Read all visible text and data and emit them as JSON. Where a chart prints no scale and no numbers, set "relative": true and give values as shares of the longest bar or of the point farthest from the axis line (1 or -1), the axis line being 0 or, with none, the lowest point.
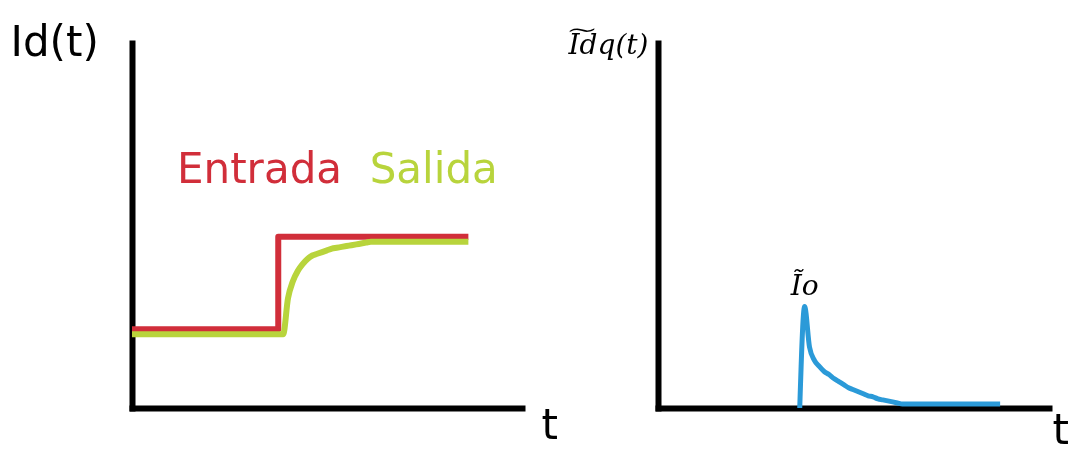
{
  "chart_data": [
    {
      "type": "line",
      "ylabel": "Id(t)",
      "xlabel": "t",
      "relative": true,
      "legend": "top",
      "line_style": "solid",
      "categories": [
        null,
        null,
        null,
        null,
        null,
        null,
        null,
        null,
        null,
        null,
        null,
        null,
        null,
        null,
        null,
        null,
        null,
        null,
        null,
        null,
        null,
        null,
        null,
        null,
        null,
        null,
        null,
        null,
        null,
        null,
        null,
        null,
        null,
        null,
        null,
        null,
        null,
        null,
        null,
        null,
        null,
        null,
        null,
        null,
        null,
        null,
        null,
        null,
        null,
        null,
        null,
        null,
        null,
        null,
        null,
        null,
        null,
        null,
        null,
        null,
        null,
        null,
        null,
        null,
        null,
        null,
        null,
        null,
        null,
        null,
        null,
        null,
        null,
        null,
        null,
        null,
        null,
        null,
        null,
        null,
        null
      ],
      "series": [
        {
          "name": "Entrada",
          "type": "step",
          "color": "#d12e3a",
          "values": [
            0.46,
            0.46,
            0.46,
            0.46,
            0.46,
            0.46,
            0.46,
            0.46,
            0.46,
            0.46,
            0.46,
            0.46,
            0.46,
            0.46,
            0.46,
            0.46,
            0.46,
            0.46,
            0.46,
            0.46,
            0.46,
            0.46,
            0.46,
            0.46,
            0.46,
            0.46,
            0.46,
            0.46,
            0.46,
            0.46,
            1,
            1,
            1,
            1,
            1,
            1,
            1,
            1,
            1,
            1,
            1,
            1,
            1,
            1,
            1,
            1,
            1,
            1,
            1,
            1,
            1,
            1,
            1,
            1,
            1,
            1,
            1,
            1,
            1,
            1,
            1,
            1,
            1,
            1,
            1,
            1,
            1,
            1,
            1,
            1,
            null,
            null,
            null,
            null,
            null,
            null,
            null,
            null,
            null,
            null,
            null
          ]
        },
        {
          "name": "Salida",
          "type": "line",
          "color": "#b8d43c",
          "values": [
            0.43,
            0.43,
            0.43,
            0.43,
            0.43,
            0.43,
            0.43,
            0.43,
            0.43,
            0.43,
            0.43,
            0.43,
            0.43,
            0.43,
            0.43,
            0.43,
            0.43,
            0.43,
            0.43,
            0.43,
            0.43,
            0.43,
            0.43,
            0.43,
            0.43,
            0.43,
            0.43,
            0.43,
            0.43,
            0.43,
            0.43,
            0.43,
            0.64,
            0.74,
            0.8,
            0.84,
            0.87,
            0.89,
            0.9,
            0.91,
            0.92,
            0.93,
            0.935,
            0.94,
            0.945,
            0.95,
            0.955,
            0.96,
            0.965,
            0.97,
            0.97,
            0.97,
            0.97,
            0.97,
            0.97,
            0.97,
            0.97,
            0.97,
            0.97,
            0.97,
            0.97,
            0.97,
            0.97,
            0.97,
            0.97,
            0.97,
            0.97,
            0.97,
            0.97,
            0.97,
            null,
            null,
            null,
            null,
            null,
            null,
            null,
            null,
            null,
            null,
            null
          ]
        }
      ]
    },
    {
      "type": "line",
      "ylabel": "I͠dq(t)",
      "xlabel": "t",
      "relative": true,
      "line_style": "solid",
      "categories": [
        null,
        null,
        null,
        null,
        null,
        null,
        null,
        null,
        null,
        null,
        null,
        null,
        null,
        null,
        null,
        null,
        null,
        null,
        null,
        null,
        null,
        null,
        null,
        null,
        null,
        null,
        null,
        null,
        null,
        null,
        null,
        null,
        null,
        null,
        null,
        null,
        null,
        null,
        null,
        null,
        null,
        null,
        null,
        null,
        null,
        null,
        null,
        null,
        null,
        null,
        null,
        null,
        null,
        null,
        null,
        null,
        null,
        null,
        null,
        null,
        null,
        null,
        null,
        null,
        null,
        null,
        null,
        null,
        null,
        null,
        null,
        null,
        null,
        null,
        null,
        null,
        null,
        null,
        null,
        null,
        null
      ],
      "series": [
        {
          "type": "line",
          "color": "#2b9ad8",
          "values": [
            null,
            null,
            null,
            null,
            null,
            null,
            null,
            null,
            null,
            null,
            null,
            null,
            null,
            null,
            null,
            null,
            null,
            null,
            null,
            null,
            null,
            null,
            null,
            null,
            null,
            null,
            null,
            null,
            null,
            0,
            1,
            0.6,
            0.47,
            0.41,
            0.36,
            0.33,
            0.29,
            0.26,
            0.23,
            0.2,
            0.18,
            0.16,
            0.14,
            0.12,
            0.11,
            0.09,
            0.08,
            0.07,
            0.06,
            0.05,
            0.04,
            0.04,
            0.04,
            0.04,
            0.04,
            0.04,
            0.04,
            0.04,
            0.04,
            0.04,
            0.04,
            0.04,
            0.04,
            0.04,
            0.04,
            0.04,
            0.04,
            0.04,
            0.04,
            0.04,
            0.04,
            null,
            null,
            null,
            null,
            null,
            null,
            null,
            null,
            null,
            null
          ]
        }
      ],
      "annotations": [
        {
          "text": "Ĩo",
          "y": 1
        }
      ]
    }
  ]
}
